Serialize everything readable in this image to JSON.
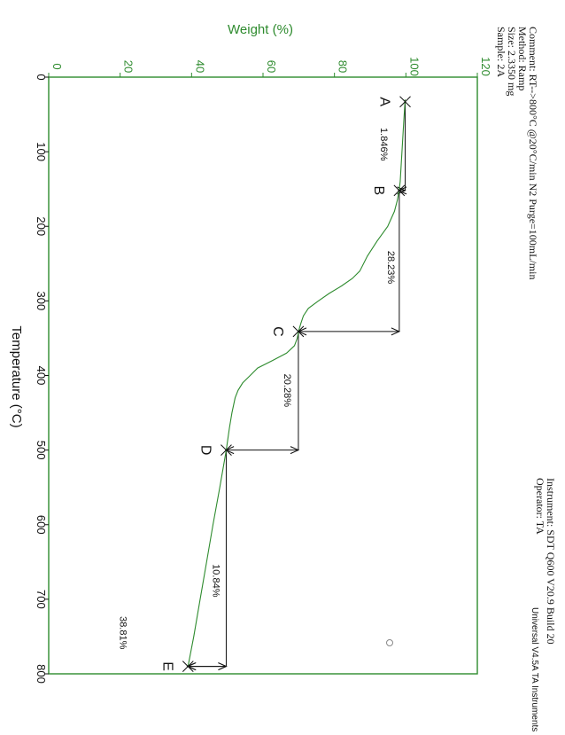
{
  "header": {
    "sample": "Sample: 2A",
    "size": "Size: 2.3350 mg",
    "method": "Method: Ramp",
    "comment": "Comment: RT-->800°C @20°C/min N2 Purge=100mL/min",
    "operator": "Operator: TA",
    "instrument": "Instrument: SDT Q600 V20.9 Build 20"
  },
  "footer": "Universal V4.5A TA Instruments",
  "chart_data": {
    "type": "line",
    "xlabel": "Temperature (°C)",
    "ylabel": "Weight (%)",
    "xlim": [
      0,
      800
    ],
    "ylim": [
      0,
      120
    ],
    "xticks": [
      0,
      100,
      200,
      300,
      400,
      500,
      600,
      700,
      800
    ],
    "yticks": [
      0,
      20,
      40,
      60,
      80,
      100,
      120
    ],
    "colors": {
      "curve": "#2e8b2e",
      "axis": "#2e8b2e",
      "annotation": "#111111"
    },
    "series": [
      {
        "x": [
          30,
          60,
          100,
          140,
          150,
          165,
          180,
          200,
          220,
          240,
          260,
          270,
          280,
          290,
          300,
          310,
          320,
          330,
          340,
          350,
          360,
          370,
          380,
          390,
          400,
          410,
          420,
          430,
          450,
          470,
          500,
          550,
          600,
          650,
          700,
          750,
          790
        ],
        "values": [
          99.8,
          99.4,
          98.9,
          98.4,
          98.15,
          97.6,
          96.8,
          94.9,
          91.9,
          89.2,
          87.1,
          85.0,
          82.0,
          78.5,
          75.5,
          72.7,
          71.3,
          70.6,
          70.0,
          69.6,
          68.8,
          66.6,
          62.6,
          58.5,
          56.4,
          54.3,
          53.0,
          52.2,
          51.3,
          50.6,
          49.7,
          47.9,
          46.0,
          44.2,
          42.4,
          40.6,
          39.0
        ]
      }
    ],
    "markers": [
      {
        "label": "A",
        "x": 33,
        "y": 99.8
      },
      {
        "label": "B",
        "x": 152,
        "y": 98.15
      },
      {
        "label": "C",
        "x": 341,
        "y": 69.9
      },
      {
        "label": "D",
        "x": 500,
        "y": 49.7
      },
      {
        "label": "E",
        "x": 790,
        "y": 39.0
      }
    ],
    "steps": [
      {
        "label": "1.846%",
        "from_x": 33,
        "to_x": 152,
        "y": 99.8,
        "drop": 1.846,
        "text_x": 90,
        "text_y": 93
      },
      {
        "label": "28.23%",
        "from_x": 152,
        "to_x": 341,
        "y": 98.15,
        "drop": 28.23,
        "text_x": 255,
        "text_y": 95
      },
      {
        "label": "20.28%",
        "from_x": 341,
        "to_x": 500,
        "y": 69.9,
        "drop": 20.28,
        "text_x": 420,
        "text_y": 66
      },
      {
        "label": "10.84%",
        "from_x": 500,
        "to_x": 790,
        "y": 49.7,
        "drop": 10.84,
        "text_x": 675,
        "text_y": 46
      },
      {
        "label": "38.81%",
        "x": 745,
        "y": 20,
        "residue": 38.81
      }
    ]
  }
}
